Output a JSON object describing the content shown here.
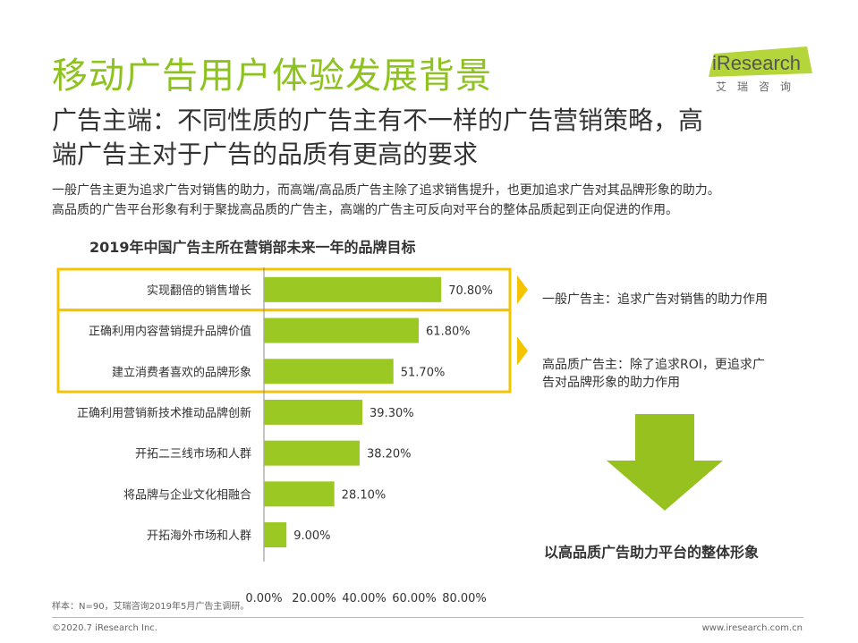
{
  "title": "移动广告用户体验发展背景",
  "logo": {
    "brand": "iResearch",
    "sub": "艾瑞咨询"
  },
  "subtitle_line1": "广告主端：不同性质的广告主有不一样的广告营销策略，高",
  "subtitle_line2": "端广告主对于广告的品质有更高的要求",
  "intro_line1": "一般广告主更为追求广告对销售的助力，而高端/高品质广告主除了追求销售提升，也更加追求广告对其品牌形象的助力。",
  "intro_line2": "高品质的广告平台形象有利于聚拢高品质的广告主，高端的广告主可反向对平台的整体品质起到正向促进的作用。",
  "colors": {
    "accent": "#8dc21f",
    "bar": "#9bc823",
    "highlight": "#f5c400",
    "arrow": "#96c11f"
  },
  "chart_data": {
    "type": "bar",
    "orientation": "horizontal",
    "title": "2019年中国广告主所在营销部未来一年的品牌目标",
    "categories": [
      "实现翻倍的销售增长",
      "正确利用内容营销提升品牌价值",
      "建立消费者喜欢的品牌形象",
      "正确利用营销新技术推动品牌创新",
      "开拓二三线市场和人群",
      "将品牌与企业文化相融合",
      "开拓海外市场和人群"
    ],
    "values": [
      70.8,
      61.8,
      51.7,
      39.3,
      38.2,
      28.1,
      9.0
    ],
    "data_labels": [
      "70.80%",
      "61.80%",
      "51.70%",
      "39.30%",
      "38.20%",
      "28.10%",
      "9.00%"
    ],
    "xlim": [
      0,
      80
    ],
    "xticks": [
      0,
      20,
      40,
      60,
      80
    ],
    "xtick_labels": [
      "0.00%",
      "20.00%",
      "40.00%",
      "60.00%",
      "80.00%"
    ],
    "grid": false,
    "highlight_groups": [
      [
        0
      ],
      [
        1,
        2
      ]
    ]
  },
  "notes": {
    "general": "一般广告主：追求广告对销售的助力作用",
    "premium_line1": "高品质广告主：除了追求ROI，更追求广",
    "premium_line2": "告对品牌形象的助力作用",
    "conclusion": "以高品质广告助力平台的整体形象"
  },
  "footer": {
    "sample": "样本：N=90，艾瑞咨询2019年5月广告主调研。",
    "copyright": "©2020.7 iResearch Inc.",
    "website": "www.iresearch.com.cn"
  }
}
